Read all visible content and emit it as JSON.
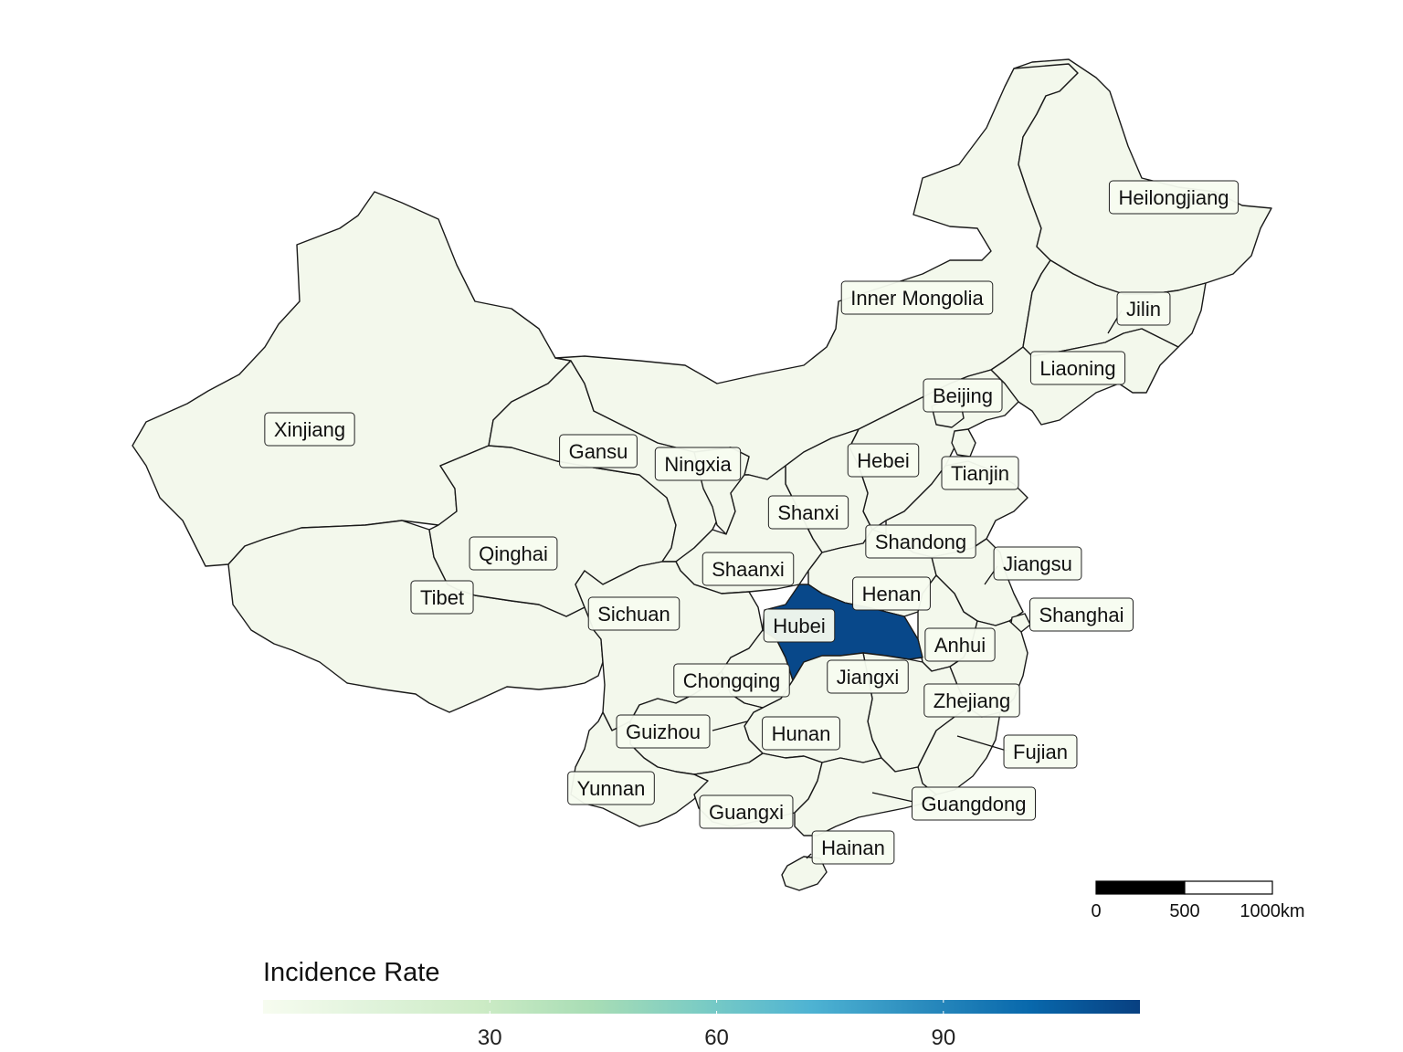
{
  "map": {
    "type": "choropleth",
    "region": "China provinces",
    "colors": {
      "base_fill": "#f3f8ec",
      "high_fill": "#084081",
      "border": "#1a1a1a"
    },
    "provinces": [
      {
        "name": "Xinjiang",
        "rate": 0
      },
      {
        "name": "Tibet",
        "rate": 0
      },
      {
        "name": "Qinghai",
        "rate": 0
      },
      {
        "name": "Gansu",
        "rate": 0
      },
      {
        "name": "Inner Mongolia",
        "rate": 0
      },
      {
        "name": "Heilongjiang",
        "rate": 0
      },
      {
        "name": "Jilin",
        "rate": 0
      },
      {
        "name": "Liaoning",
        "rate": 0
      },
      {
        "name": "Beijing",
        "rate": 0
      },
      {
        "name": "Tianjin",
        "rate": 0
      },
      {
        "name": "Hebei",
        "rate": 0
      },
      {
        "name": "Ningxia",
        "rate": 0
      },
      {
        "name": "Shanxi",
        "rate": 0
      },
      {
        "name": "Shandong",
        "rate": 0
      },
      {
        "name": "Shaanxi",
        "rate": 0
      },
      {
        "name": "Henan",
        "rate": 0
      },
      {
        "name": "Jiangsu",
        "rate": 0
      },
      {
        "name": "Shanghai",
        "rate": 0
      },
      {
        "name": "Sichuan",
        "rate": 0
      },
      {
        "name": "Hubei",
        "rate": 113
      },
      {
        "name": "Anhui",
        "rate": 0
      },
      {
        "name": "Chongqing",
        "rate": 0
      },
      {
        "name": "Jiangxi",
        "rate": 0
      },
      {
        "name": "Zhejiang",
        "rate": 0
      },
      {
        "name": "Guizhou",
        "rate": 0
      },
      {
        "name": "Hunan",
        "rate": 0
      },
      {
        "name": "Fujian",
        "rate": 0
      },
      {
        "name": "Yunnan",
        "rate": 0
      },
      {
        "name": "Guangxi",
        "rate": 0
      },
      {
        "name": "Guangdong",
        "rate": 0
      },
      {
        "name": "Hainan",
        "rate": 0
      }
    ]
  },
  "scalebar": {
    "ticks": [
      "0",
      "500",
      "1000km"
    ]
  },
  "legend": {
    "title": "Incidence Rate",
    "range": [
      0,
      116
    ],
    "ticks": [
      30,
      60,
      90
    ],
    "tick_labels": [
      "30",
      "60",
      "90"
    ],
    "gradient_colors": [
      "#f7fcf0",
      "#e0f3db",
      "#ccebc5",
      "#a8ddb5",
      "#7bccc4",
      "#4eb3d3",
      "#2b8cbe",
      "#0868ac",
      "#084081"
    ]
  }
}
